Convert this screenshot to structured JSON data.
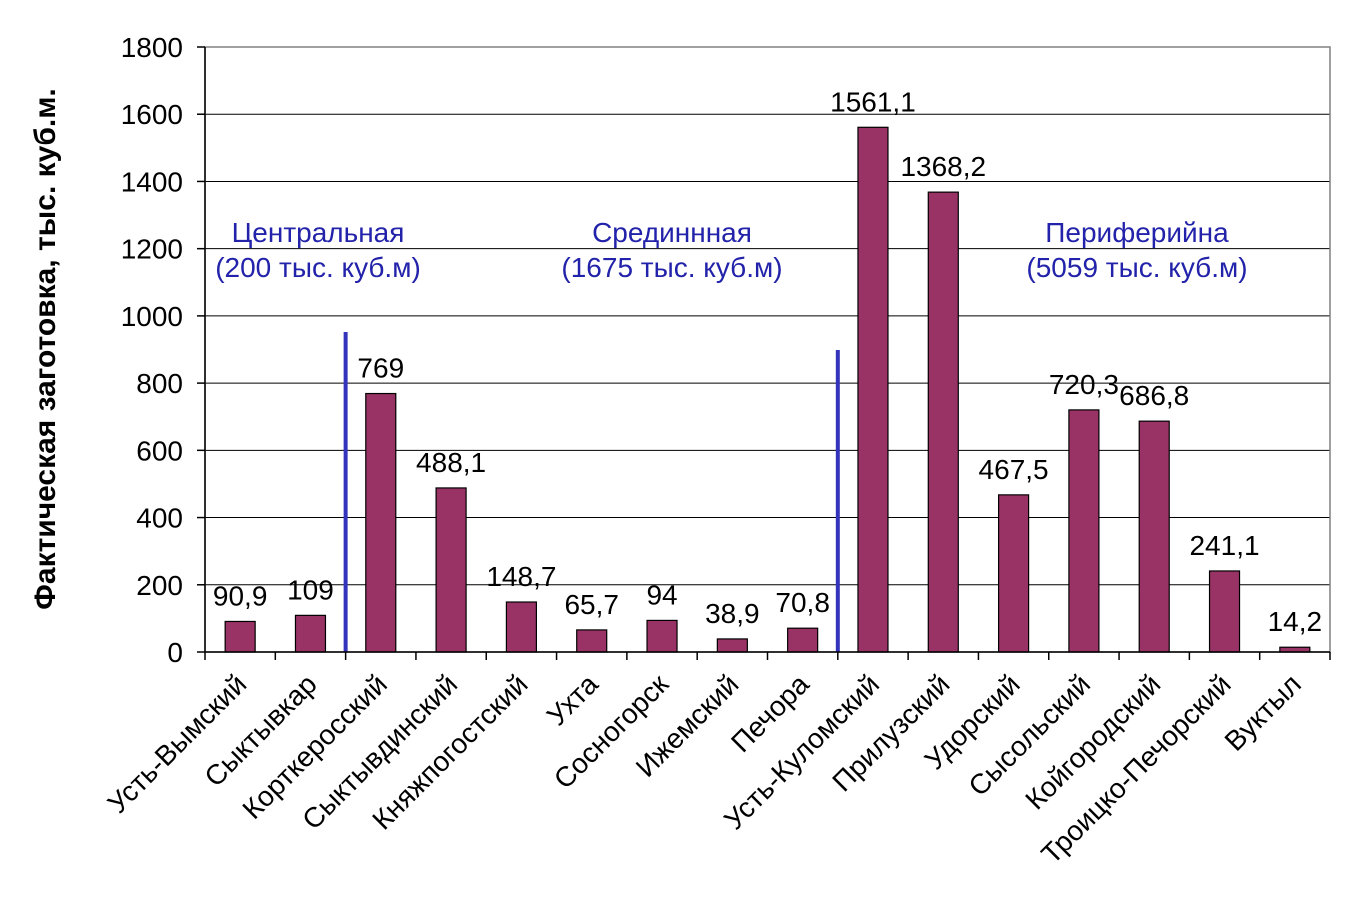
{
  "chart_data": {
    "type": "bar",
    "ylabel": "Фактическая заготовка, тыс. куб.м.",
    "xlabel": "",
    "ylim": [
      0,
      1800
    ],
    "yticks": [
      "0",
      "200",
      "400",
      "600",
      "800",
      "1000",
      "1200",
      "1400",
      "1600",
      "1800"
    ],
    "grid": true,
    "categories": [
      "Усть-Вымский",
      "Сыктывкар",
      "Корткеросский",
      "Сыктывдинский",
      "Княжпогостский",
      "Ухта",
      "Сосногорск",
      "Ижемский",
      "Печора",
      "Усть-Куломский",
      "Прилузский",
      "Удорский",
      "Сысольский",
      "Койгородский",
      "Троицко-Печорский",
      "Вуктыл"
    ],
    "values": [
      90.9,
      109,
      769,
      488.1,
      148.7,
      65.7,
      94,
      38.9,
      70.8,
      1561.1,
      1368.2,
      467.5,
      720.3,
      686.8,
      241.1,
      14.2
    ],
    "value_labels": [
      "90,9",
      "109",
      "769",
      "488,1",
      "148,7",
      "65,7",
      "94",
      "38,9",
      "70,8",
      "1561,1",
      "1368,2",
      "467,5",
      "720,3",
      "686,8",
      "241,1",
      "14,2"
    ],
    "bar_color": "#993366",
    "divider_color": "#3333bb",
    "annotation_color": "#2222aa",
    "zones": [
      {
        "name": "Центральная",
        "total": "(200 тыс. куб.м)"
      },
      {
        "name": "Срединнная",
        "total": "(1675 тыс. куб.м)"
      },
      {
        "name": "Периферийна",
        "total": "(5059 тыс. куб.м)"
      }
    ],
    "zone_dividers_after_index": [
      1,
      8
    ]
  }
}
